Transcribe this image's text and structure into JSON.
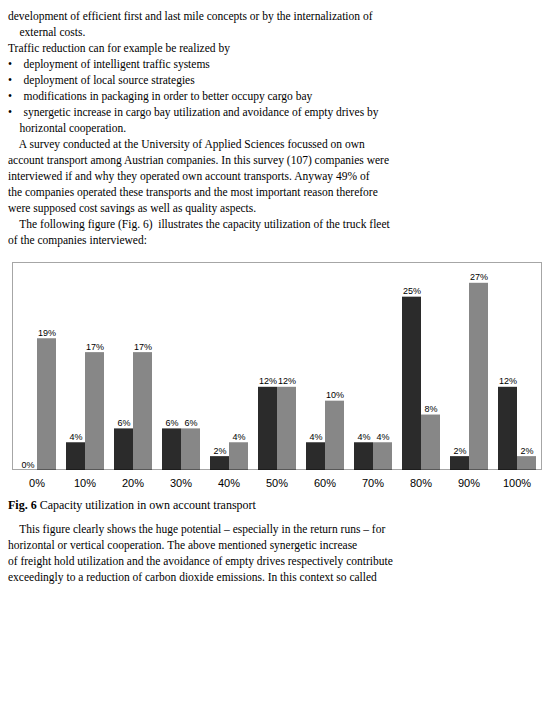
{
  "chart_data": {
    "type": "bar",
    "categories": [
      "0%",
      "10%",
      "20%",
      "30%",
      "40%",
      "50%",
      "60%",
      "70%",
      "80%",
      "90%",
      "100%"
    ],
    "series": [
      {
        "color": "#2b2b2b",
        "values": [
          0,
          4,
          6,
          6,
          2,
          12,
          4,
          4,
          25,
          2,
          12
        ],
        "value_labels": [
          "0%",
          "4%",
          "6%",
          "6%",
          "2%",
          "12%",
          "4%",
          "4%",
          "25%",
          "2%",
          "12%"
        ]
      },
      {
        "color": "#878787",
        "values": [
          19,
          17,
          17,
          6,
          4,
          12,
          10,
          4,
          8,
          27,
          2
        ],
        "value_labels": [
          "19%",
          "17%",
          "17%",
          "6%",
          "4%",
          "12%",
          "10%",
          "4%",
          "8%",
          "27%",
          "2%"
        ]
      }
    ],
    "ylim": [
      0,
      30
    ],
    "tick_labels": "x",
    "data_labels": true,
    "text_top": "development of efficient first and last mile concepts or by the internalization of\n    external costs.\nTraffic reduction can for example be realized by\n•    deployment of intelligent traffic systems\n•    deployment of local source strategies\n•    modifications in packaging in order to better occupy cargo bay\n•    synergetic increase in cargo bay utilization and avoidance of empty drives by\n    horizontal cooperation.\n    A survey conducted at the University of Applied Sciences focussed on own\naccount transport among Austrian companies. In this survey (107) companies were\ninterviewed if and why they operated own account transports. Anyway 49% of\nthe companies operated these transports and the most important reason therefore\nwere supposed cost savings as well as quality aspects.\n    The following figure (Fig. 6)  illustrates the capacity utilization of the truck fleet\nof the companies interviewed:",
    "caption_label": "Fig. 6",
    "caption": "Capacity utilization in own account transport",
    "text_bottom": "    This figure clearly shows the huge potential – especially in the return runs – for\nhorizontal or vertical cooperation. The above mentioned synergetic increase\nof freight hold utilization and the avoidance of empty drives respectively contribute\nexceedingly to a reduction of carbon dioxide emissions. In this context so called"
  }
}
